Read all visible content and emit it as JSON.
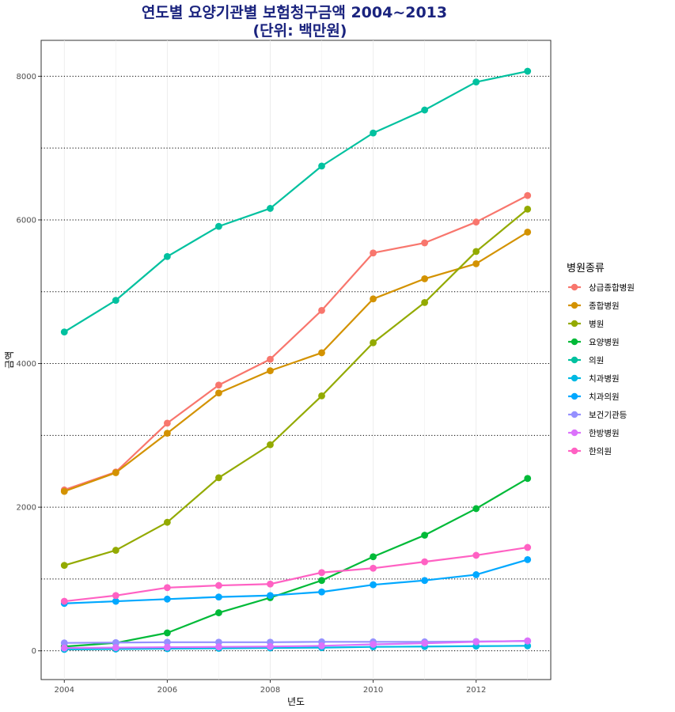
{
  "chart_data": {
    "type": "line",
    "title": "연도별 요양기관별 보험청구금액 2004~2013",
    "subtitle": "(단위: 백만원)",
    "xlabel": "년도",
    "ylabel": "금액",
    "x": [
      2004,
      2005,
      2006,
      2007,
      2008,
      2009,
      2010,
      2011,
      2012,
      2013
    ],
    "xlim": [
      2003.55,
      2013.45
    ],
    "ylim": [
      -400,
      8500
    ],
    "x_ticks": [
      2004,
      2006,
      2008,
      2010,
      2012
    ],
    "y_ticks": [
      0,
      2000,
      4000,
      6000,
      8000
    ],
    "grid": true,
    "legend_title": "병원종류",
    "legend_position": "right",
    "series": [
      {
        "name": "상급종합병원",
        "color": "#F8766D",
        "values": [
          2240,
          2490,
          3170,
          3700,
          4060,
          4740,
          5540,
          5680,
          5970,
          6340
        ]
      },
      {
        "name": "종합병원",
        "color": "#D39200",
        "values": [
          2220,
          2480,
          3030,
          3590,
          3900,
          4150,
          4900,
          5180,
          5390,
          5830
        ]
      },
      {
        "name": "병원",
        "color": "#93AA00",
        "values": [
          1190,
          1400,
          1790,
          2410,
          2870,
          3550,
          4290,
          4850,
          5560,
          6150
        ]
      },
      {
        "name": "요양병원",
        "color": "#00BA38",
        "values": [
          60,
          110,
          250,
          530,
          740,
          980,
          1310,
          1610,
          1980,
          2400
        ]
      },
      {
        "name": "의원",
        "color": "#00C19F",
        "values": [
          4440,
          4880,
          5490,
          5910,
          6160,
          6750,
          7210,
          7530,
          7920,
          8070
        ]
      },
      {
        "name": "치과병원",
        "color": "#00B9E3",
        "values": [
          20,
          25,
          30,
          35,
          40,
          45,
          55,
          60,
          65,
          70
        ]
      },
      {
        "name": "치과의원",
        "color": "#00A8FF",
        "values": [
          660,
          690,
          720,
          750,
          770,
          820,
          920,
          980,
          1060,
          1270
        ]
      },
      {
        "name": "보건기관등",
        "color": "#9590FF",
        "values": [
          110,
          115,
          120,
          120,
          120,
          125,
          125,
          125,
          130,
          135
        ]
      },
      {
        "name": "한방병원",
        "color": "#DB72FB",
        "values": [
          40,
          45,
          50,
          55,
          60,
          70,
          90,
          105,
          125,
          140
        ]
      },
      {
        "name": "한의원",
        "color": "#FF61C3",
        "values": [
          690,
          770,
          880,
          910,
          930,
          1090,
          1150,
          1240,
          1330,
          1440
        ]
      }
    ]
  }
}
